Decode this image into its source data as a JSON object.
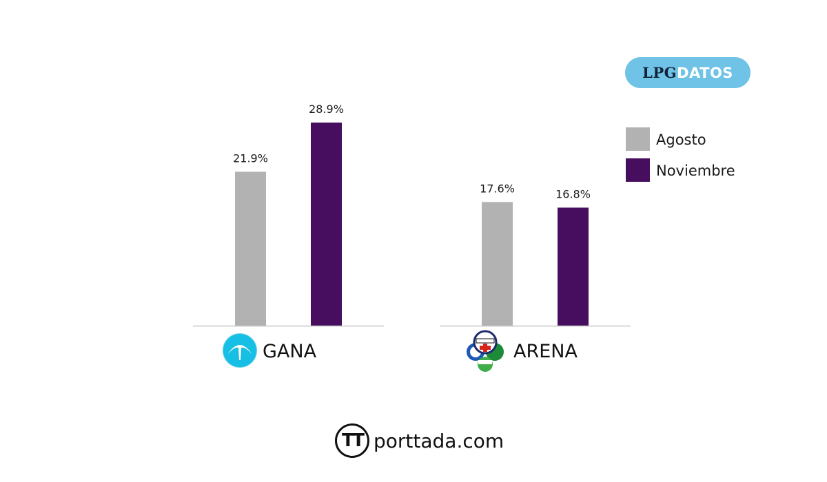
{
  "chart_data": {
    "type": "bar",
    "title": "",
    "xlabel": "",
    "ylabel": "",
    "ylim": [
      0,
      30
    ],
    "grid": false,
    "legend_position": "top-right",
    "categories": [
      "GANA",
      "ARENA"
    ],
    "series": [
      {
        "name": "Agosto",
        "values": [
          21.9,
          17.6
        ],
        "labels": [
          "21.9%",
          "17.6%"
        ],
        "color": "#b3b2b2"
      },
      {
        "name": "Noviembre",
        "values": [
          28.9,
          16.8
        ],
        "labels": [
          "28.9%",
          "16.8%"
        ],
        "color": "#470d5e"
      }
    ]
  },
  "colors": {
    "baseline": "#c8c8c8",
    "badge_bg": "#6ec3e6",
    "gana_logo": "#16bfe3"
  },
  "badge": {
    "part1": "LPG",
    "part2": "DATOS"
  },
  "footer": {
    "brand_mark": "TT",
    "brand_text": "porttada.com"
  },
  "logos": {
    "gana": "gana-logo-icon",
    "arena": "arena-coalition-logo-icon"
  }
}
